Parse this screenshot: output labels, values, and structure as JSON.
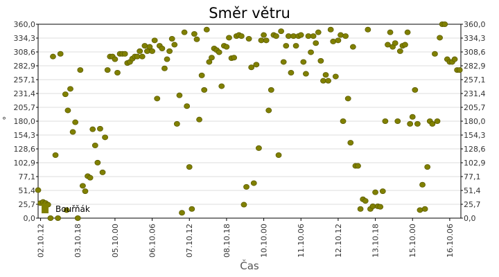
{
  "chart_data": {
    "type": "scatter",
    "title": "Směr větru",
    "xlabel": "Čas",
    "ylabel": "°",
    "ylim": [
      0,
      360
    ],
    "y_ticks": [
      "0,0",
      "25,7",
      "51,4",
      "77,1",
      "102,9",
      "128,6",
      "154,3",
      "180,0",
      "205,7",
      "231,4",
      "257,1",
      "282,9",
      "308,6",
      "334,3",
      "360,0"
    ],
    "x_ticks": [
      "02.10.12",
      "03.10.18",
      "05.10.00",
      "06.10.06",
      "07.10.12",
      "08.10.18",
      "10.10.00",
      "11.10.06",
      "12.10.12",
      "13.10.18",
      "15.10.00",
      "16.10.06"
    ],
    "xlim_hours": [
      0,
      341
    ],
    "grid": true,
    "legend_position": "bottom-left",
    "marker_color": "#808000",
    "series": [
      {
        "name": "Bouřňák",
        "points": [
          [
            0,
            52
          ],
          [
            1,
            28
          ],
          [
            2,
            30
          ],
          [
            3,
            28
          ],
          [
            4,
            25
          ],
          [
            5,
            0
          ],
          [
            6,
            300
          ],
          [
            7,
            117
          ],
          [
            8,
            0
          ],
          [
            9,
            305
          ],
          [
            11,
            230
          ],
          [
            11.5,
            15
          ],
          [
            12,
            200
          ],
          [
            13,
            240
          ],
          [
            14,
            160
          ],
          [
            15,
            178
          ],
          [
            16,
            0
          ],
          [
            17,
            275
          ],
          [
            18,
            60
          ],
          [
            19,
            50
          ],
          [
            20,
            78
          ],
          [
            21,
            75
          ],
          [
            22,
            165
          ],
          [
            23,
            135
          ],
          [
            24,
            103
          ],
          [
            25,
            166
          ],
          [
            26,
            85
          ],
          [
            27,
            150
          ],
          [
            28,
            275
          ],
          [
            29,
            300
          ],
          [
            30,
            300
          ],
          [
            31,
            295
          ],
          [
            32,
            270
          ],
          [
            33,
            305
          ],
          [
            34,
            305
          ],
          [
            35,
            305
          ],
          [
            36,
            288
          ],
          [
            37,
            290
          ],
          [
            38,
            296
          ],
          [
            39,
            300
          ],
          [
            40,
            300
          ],
          [
            41,
            310
          ],
          [
            42,
            300
          ],
          [
            43,
            320
          ],
          [
            44,
            310
          ],
          [
            45,
            318
          ],
          [
            46,
            310
          ],
          [
            47,
            330
          ],
          [
            48,
            222
          ],
          [
            49,
            320
          ],
          [
            50,
            315
          ],
          [
            51,
            278
          ],
          [
            52,
            295
          ],
          [
            53,
            310
          ],
          [
            54,
            333
          ],
          [
            55,
            322
          ],
          [
            56,
            175
          ],
          [
            57,
            228
          ],
          [
            58,
            10
          ],
          [
            59,
            345
          ],
          [
            60,
            208
          ],
          [
            61,
            95
          ],
          [
            62,
            17
          ],
          [
            63,
            342
          ],
          [
            64,
            332
          ],
          [
            65,
            183
          ],
          [
            66,
            265
          ],
          [
            67,
            238
          ],
          [
            68,
            350
          ],
          [
            69,
            290
          ],
          [
            70,
            298
          ],
          [
            71,
            315
          ],
          [
            72,
            312
          ],
          [
            73,
            308
          ],
          [
            74,
            245
          ],
          [
            75,
            320
          ],
          [
            76,
            318
          ],
          [
            77,
            335
          ],
          [
            78,
            297
          ],
          [
            79,
            298
          ],
          [
            80,
            338
          ],
          [
            81,
            340
          ],
          [
            82,
            338
          ],
          [
            83,
            25
          ],
          [
            84,
            58
          ],
          [
            85,
            333
          ],
          [
            86,
            280
          ],
          [
            87,
            65
          ],
          [
            88,
            285
          ],
          [
            89,
            130
          ],
          [
            90,
            330
          ],
          [
            91,
            340
          ],
          [
            92,
            330
          ],
          [
            93,
            200
          ],
          [
            94,
            238
          ],
          [
            95,
            340
          ],
          [
            96,
            338
          ],
          [
            97,
            117
          ],
          [
            98,
            347
          ],
          [
            99,
            290
          ],
          [
            100,
            320
          ],
          [
            101,
            338
          ],
          [
            102,
            270
          ],
          [
            103,
            338
          ],
          [
            104,
            320
          ],
          [
            105,
            338
          ],
          [
            106,
            340
          ],
          [
            107,
            290
          ],
          [
            108,
            268
          ],
          [
            109,
            338
          ],
          [
            110,
            308
          ],
          [
            111,
            338
          ],
          [
            112,
            325
          ],
          [
            113,
            345
          ],
          [
            114,
            292
          ],
          [
            115,
            255
          ],
          [
            116,
            266
          ],
          [
            117,
            255
          ],
          [
            118,
            350
          ],
          [
            119,
            328
          ],
          [
            120,
            263
          ],
          [
            121,
            330
          ],
          [
            122,
            340
          ],
          [
            123,
            180
          ],
          [
            124,
            338
          ],
          [
            125,
            222
          ],
          [
            126,
            140
          ],
          [
            127,
            318
          ],
          [
            128,
            97
          ],
          [
            129,
            97
          ],
          [
            130,
            17
          ],
          [
            131,
            35
          ],
          [
            132,
            32
          ],
          [
            133,
            350
          ],
          [
            134,
            17
          ],
          [
            135,
            22
          ],
          [
            136,
            48
          ],
          [
            137,
            22
          ],
          [
            138,
            21
          ],
          [
            139,
            50
          ],
          [
            140,
            180
          ],
          [
            141,
            322
          ],
          [
            142,
            345
          ],
          [
            143,
            318
          ],
          [
            144,
            325
          ],
          [
            145,
            180
          ],
          [
            146,
            310
          ],
          [
            147,
            320
          ],
          [
            148,
            322
          ],
          [
            149,
            345
          ],
          [
            150,
            175
          ],
          [
            151,
            188
          ],
          [
            152,
            238
          ],
          [
            153,
            175
          ],
          [
            154,
            15
          ],
          [
            155,
            62
          ],
          [
            156,
            17
          ],
          [
            157,
            95
          ],
          [
            158,
            180
          ],
          [
            159,
            175
          ],
          [
            160,
            305
          ],
          [
            161,
            180
          ],
          [
            162,
            335
          ],
          [
            163,
            360
          ],
          [
            164,
            360
          ],
          [
            165,
            295
          ],
          [
            166,
            290
          ],
          [
            167,
            290
          ],
          [
            168,
            295
          ],
          [
            169,
            275
          ],
          [
            170,
            275
          ]
        ]
      }
    ]
  }
}
